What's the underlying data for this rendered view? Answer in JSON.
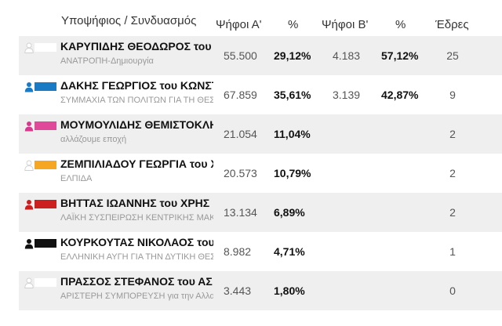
{
  "header": {
    "candidate": "Υποψήφιος / Συνδυασμός",
    "votes_a": "Ψήφοι Α'",
    "pct_a": "%",
    "votes_b": "Ψήφοι Β'",
    "pct_b": "%",
    "seats": "Έδρες"
  },
  "rows": [
    {
      "candidate": "ΚΑΡΥΠΙΔΗΣ ΘΕΟΔΩΡΟΣ του",
      "party": "ΑΝΑΤΡΟΠΗ-Δημιουργία",
      "votes_a": "55.500",
      "pct_a": "29,12%",
      "votes_b": "4.183",
      "pct_b": "57,12%",
      "seats": "25",
      "person_color": "#ffffff",
      "swatch_color": "#ffffff",
      "person_icon": "person-outline-icon"
    },
    {
      "candidate": "ΔΑΚΗΣ ΓΕΩΡΓΙΟΣ του ΚΩΝΣΤ",
      "party": "ΣΥΜΜΑΧΙΑ ΤΩΝ ΠΟΛΙΤΩΝ ΓΙΑ ΤΗ ΘΕΣΣΑΛΟΝΙΚΗ",
      "votes_a": "67.859",
      "pct_a": "35,61%",
      "votes_b": "3.139",
      "pct_b": "42,87%",
      "seats": "9",
      "person_color": "#1a7bc4",
      "swatch_color": "#1a7bc4",
      "person_icon": "person-icon"
    },
    {
      "candidate": "ΜΟΥΜΟΥΛΙΔΗΣ ΘΕΜΙΣΤΟΚΛΗΣ",
      "party": "αλλάζουμε εποχή",
      "votes_a": "21.054",
      "pct_a": "11,04%",
      "votes_b": "",
      "pct_b": "",
      "seats": "2",
      "person_color": "#d63a8f",
      "swatch_color": "#e0489a",
      "person_icon": "person-icon"
    },
    {
      "candidate": "ΖΕΜΠΙΛΙΑΔΟΥ ΓΕΩΡΓΙΑ του Χ",
      "party": "ΕΛΠΙΔΑ",
      "votes_a": "20.573",
      "pct_a": "10,79%",
      "votes_b": "",
      "pct_b": "",
      "seats": "2",
      "person_color": "#ffffff",
      "swatch_color": "#f5a623",
      "person_icon": "person-outline-icon"
    },
    {
      "candidate": "ΒΗΤΤΑΣ ΙΩΑΝΝΗΣ του ΧΡΗΣ",
      "party": "ΛΑΪΚΗ ΣΥΣΠΕΙΡΩΣΗ ΚΕΝΤΡΙΚΗΣ ΜΑΚΕΔΟΝΙΑΣ",
      "votes_a": "13.134",
      "pct_a": "6,89%",
      "votes_b": "",
      "pct_b": "",
      "seats": "2",
      "person_color": "#cc1f1f",
      "swatch_color": "#cc1f1f",
      "person_icon": "person-icon"
    },
    {
      "candidate": "ΚΟΥΡΚΟΥΤΑΣ ΝΙΚΟΛΑΟΣ του",
      "party": "ΕΛΛΗΝΙΚΗ ΑΥΓΗ ΓΙΑ ΤΗΝ ΔΥΤΙΚΗ ΘΕΣΣΑΛΟΝΙΚΗ",
      "votes_a": "8.982",
      "pct_a": "4,71%",
      "votes_b": "",
      "pct_b": "",
      "seats": "1",
      "person_color": "#111111",
      "swatch_color": "#111111",
      "person_icon": "person-icon"
    },
    {
      "candidate": "ΠΡΑΣΣΟΣ ΣΤΕΦΑΝΟΣ του ΑΣ",
      "party": "ΑΡΙΣΤΕΡΗ ΣΥΜΠΟΡΕΥΣΗ για την Αλλαγή",
      "votes_a": "3.443",
      "pct_a": "1,80%",
      "votes_b": "",
      "pct_b": "",
      "seats": "0",
      "person_color": "#ffffff",
      "swatch_color": "#ffffff",
      "person_icon": "person-outline-icon"
    }
  ]
}
